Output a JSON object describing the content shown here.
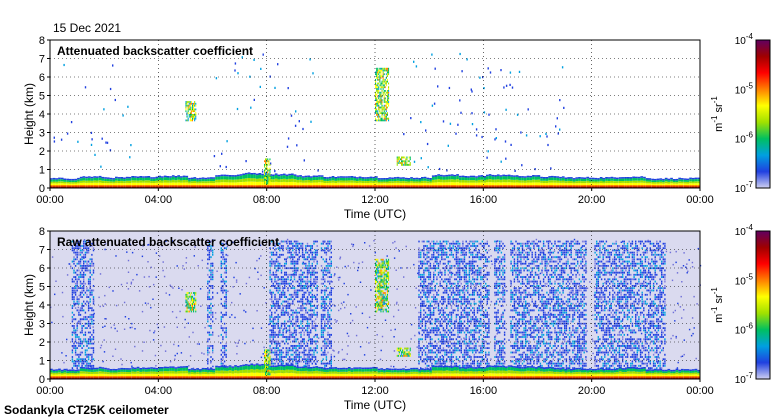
{
  "date": "15 Dec 2021",
  "footer": "Sodankyla CT25K ceilometer",
  "colorbar": {
    "unit_base": "m",
    "unit_exp1": "-1",
    "unit_mid": " sr",
    "unit_exp2": "-1",
    "scale": "log",
    "ticks": [
      {
        "base": "10",
        "exp": "-4"
      },
      {
        "base": "10",
        "exp": "-5"
      },
      {
        "base": "10",
        "exp": "-6"
      },
      {
        "base": "10",
        "exp": "-7"
      }
    ],
    "colors": [
      "#d0d0f0",
      "#2040e0",
      "#00a0e0",
      "#00c060",
      "#a0e000",
      "#ffff00",
      "#ff8000",
      "#ff0000",
      "#a00000",
      "#600060"
    ]
  },
  "chart_data": [
    {
      "type": "heatmap",
      "title": "Attenuated backscatter coefficient",
      "xlabel": "Time (UTC)",
      "ylabel": "Height (km)",
      "xlim": [
        0,
        24
      ],
      "ylim": [
        0,
        8
      ],
      "xticks": [
        "00:00",
        "04:00",
        "08:00",
        "12:00",
        "16:00",
        "20:00",
        "00:00"
      ],
      "yticks": [
        "0",
        "1",
        "2",
        "3",
        "4",
        "5",
        "6",
        "7",
        "8"
      ],
      "grid": true,
      "background": "#ffffff",
      "boundary_layer_top_km": [
        0.3,
        0.4,
        0.35,
        0.4,
        0.45,
        0.35,
        0.5,
        0.6,
        0.55,
        0.45,
        0.4,
        0.4,
        0.35,
        0.35,
        0.5,
        0.45,
        0.5,
        0.45,
        0.4,
        0.35,
        0.35,
        0.4,
        0.3,
        0.3,
        0.3
      ],
      "noise_density": "sparse",
      "features": [
        {
          "name": "cloud",
          "time_h": [
            5.0,
            5.4
          ],
          "height_km": [
            3.6,
            4.6
          ]
        },
        {
          "name": "cloud",
          "time_h": [
            7.9,
            8.1
          ],
          "height_km": [
            0.2,
            1.6
          ]
        },
        {
          "name": "cloud",
          "time_h": [
            12.0,
            12.5
          ],
          "height_km": [
            3.6,
            6.4
          ]
        },
        {
          "name": "cloud",
          "time_h": [
            12.8,
            13.3
          ],
          "height_km": [
            1.2,
            1.7
          ]
        }
      ]
    },
    {
      "type": "heatmap",
      "title": "Raw attenuated backscatter coefficient",
      "xlabel": "Time (UTC)",
      "ylabel": "Height (km)",
      "xlim": [
        0,
        24
      ],
      "ylim": [
        0,
        8
      ],
      "xticks": [
        "00:00",
        "04:00",
        "08:00",
        "12:00",
        "16:00",
        "20:00",
        "00:00"
      ],
      "yticks": [
        "0",
        "1",
        "2",
        "3",
        "4",
        "5",
        "6",
        "7",
        "8"
      ],
      "grid": true,
      "background": "#dadaef",
      "noise_density": "dense",
      "dense_noise_periods_h": [
        [
          0.8,
          1.6
        ],
        [
          5.8,
          6.0
        ],
        [
          6.3,
          6.5
        ],
        [
          8.1,
          9.9
        ],
        [
          10.0,
          10.4
        ],
        [
          13.6,
          16.2
        ],
        [
          16.4,
          16.8
        ],
        [
          17.0,
          19.8
        ],
        [
          20.1,
          22.7
        ]
      ],
      "features": [
        {
          "name": "cloud",
          "time_h": [
            5.0,
            5.4
          ],
          "height_km": [
            3.6,
            4.6
          ]
        },
        {
          "name": "cloud",
          "time_h": [
            7.9,
            8.1
          ],
          "height_km": [
            0.2,
            1.6
          ]
        },
        {
          "name": "cloud",
          "time_h": [
            12.0,
            12.5
          ],
          "height_km": [
            3.6,
            6.4
          ]
        },
        {
          "name": "cloud",
          "time_h": [
            12.8,
            13.3
          ],
          "height_km": [
            1.2,
            1.7
          ]
        }
      ]
    }
  ]
}
